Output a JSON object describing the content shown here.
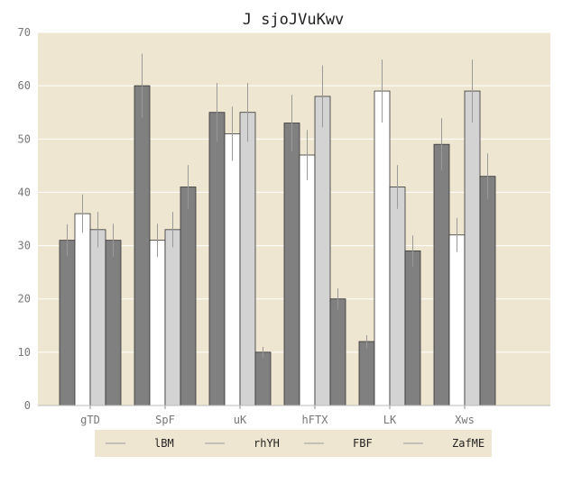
{
  "chart_data": {
    "type": "bar",
    "title": "J sjoJVuKwv",
    "xlabel": "",
    "ylabel": "",
    "ylim": [
      0,
      70
    ],
    "yticks": [
      "0",
      "10",
      "20",
      "30",
      "40",
      "50",
      "60",
      "70"
    ],
    "categories": [
      "gTD",
      "SpF",
      "uK",
      "hFTX",
      "LK",
      "Xws"
    ],
    "grid": true,
    "legend_position": "bottom",
    "series": [
      {
        "name": "lBM",
        "color": "#808080",
        "values": [
          31,
          60,
          55,
          53,
          12,
          49
        ],
        "errors": [
          3,
          6,
          5.5,
          5.3,
          1.2,
          4.9
        ]
      },
      {
        "name": "rhYH",
        "color": "#ffffff",
        "values": [
          36,
          31,
          51,
          47,
          59,
          32
        ],
        "errors": [
          3.6,
          3.1,
          5.1,
          4.7,
          5.9,
          3.2
        ]
      },
      {
        "name": "FBF",
        "color": "#d3d3d3",
        "values": [
          33,
          33,
          55,
          58,
          41,
          59
        ],
        "errors": [
          3.3,
          3.3,
          5.5,
          5.8,
          4.1,
          5.9
        ]
      },
      {
        "name": "ZafME",
        "color": "#808080",
        "values": [
          31,
          41,
          10,
          20,
          29,
          43
        ],
        "errors": [
          3.1,
          4.1,
          1.0,
          2.0,
          2.9,
          4.3
        ]
      }
    ],
    "colors": {
      "plot_background": "#efe6d1",
      "grid": "#ffffff",
      "bar_edge": "#333333",
      "error_bar": "#999999"
    }
  }
}
